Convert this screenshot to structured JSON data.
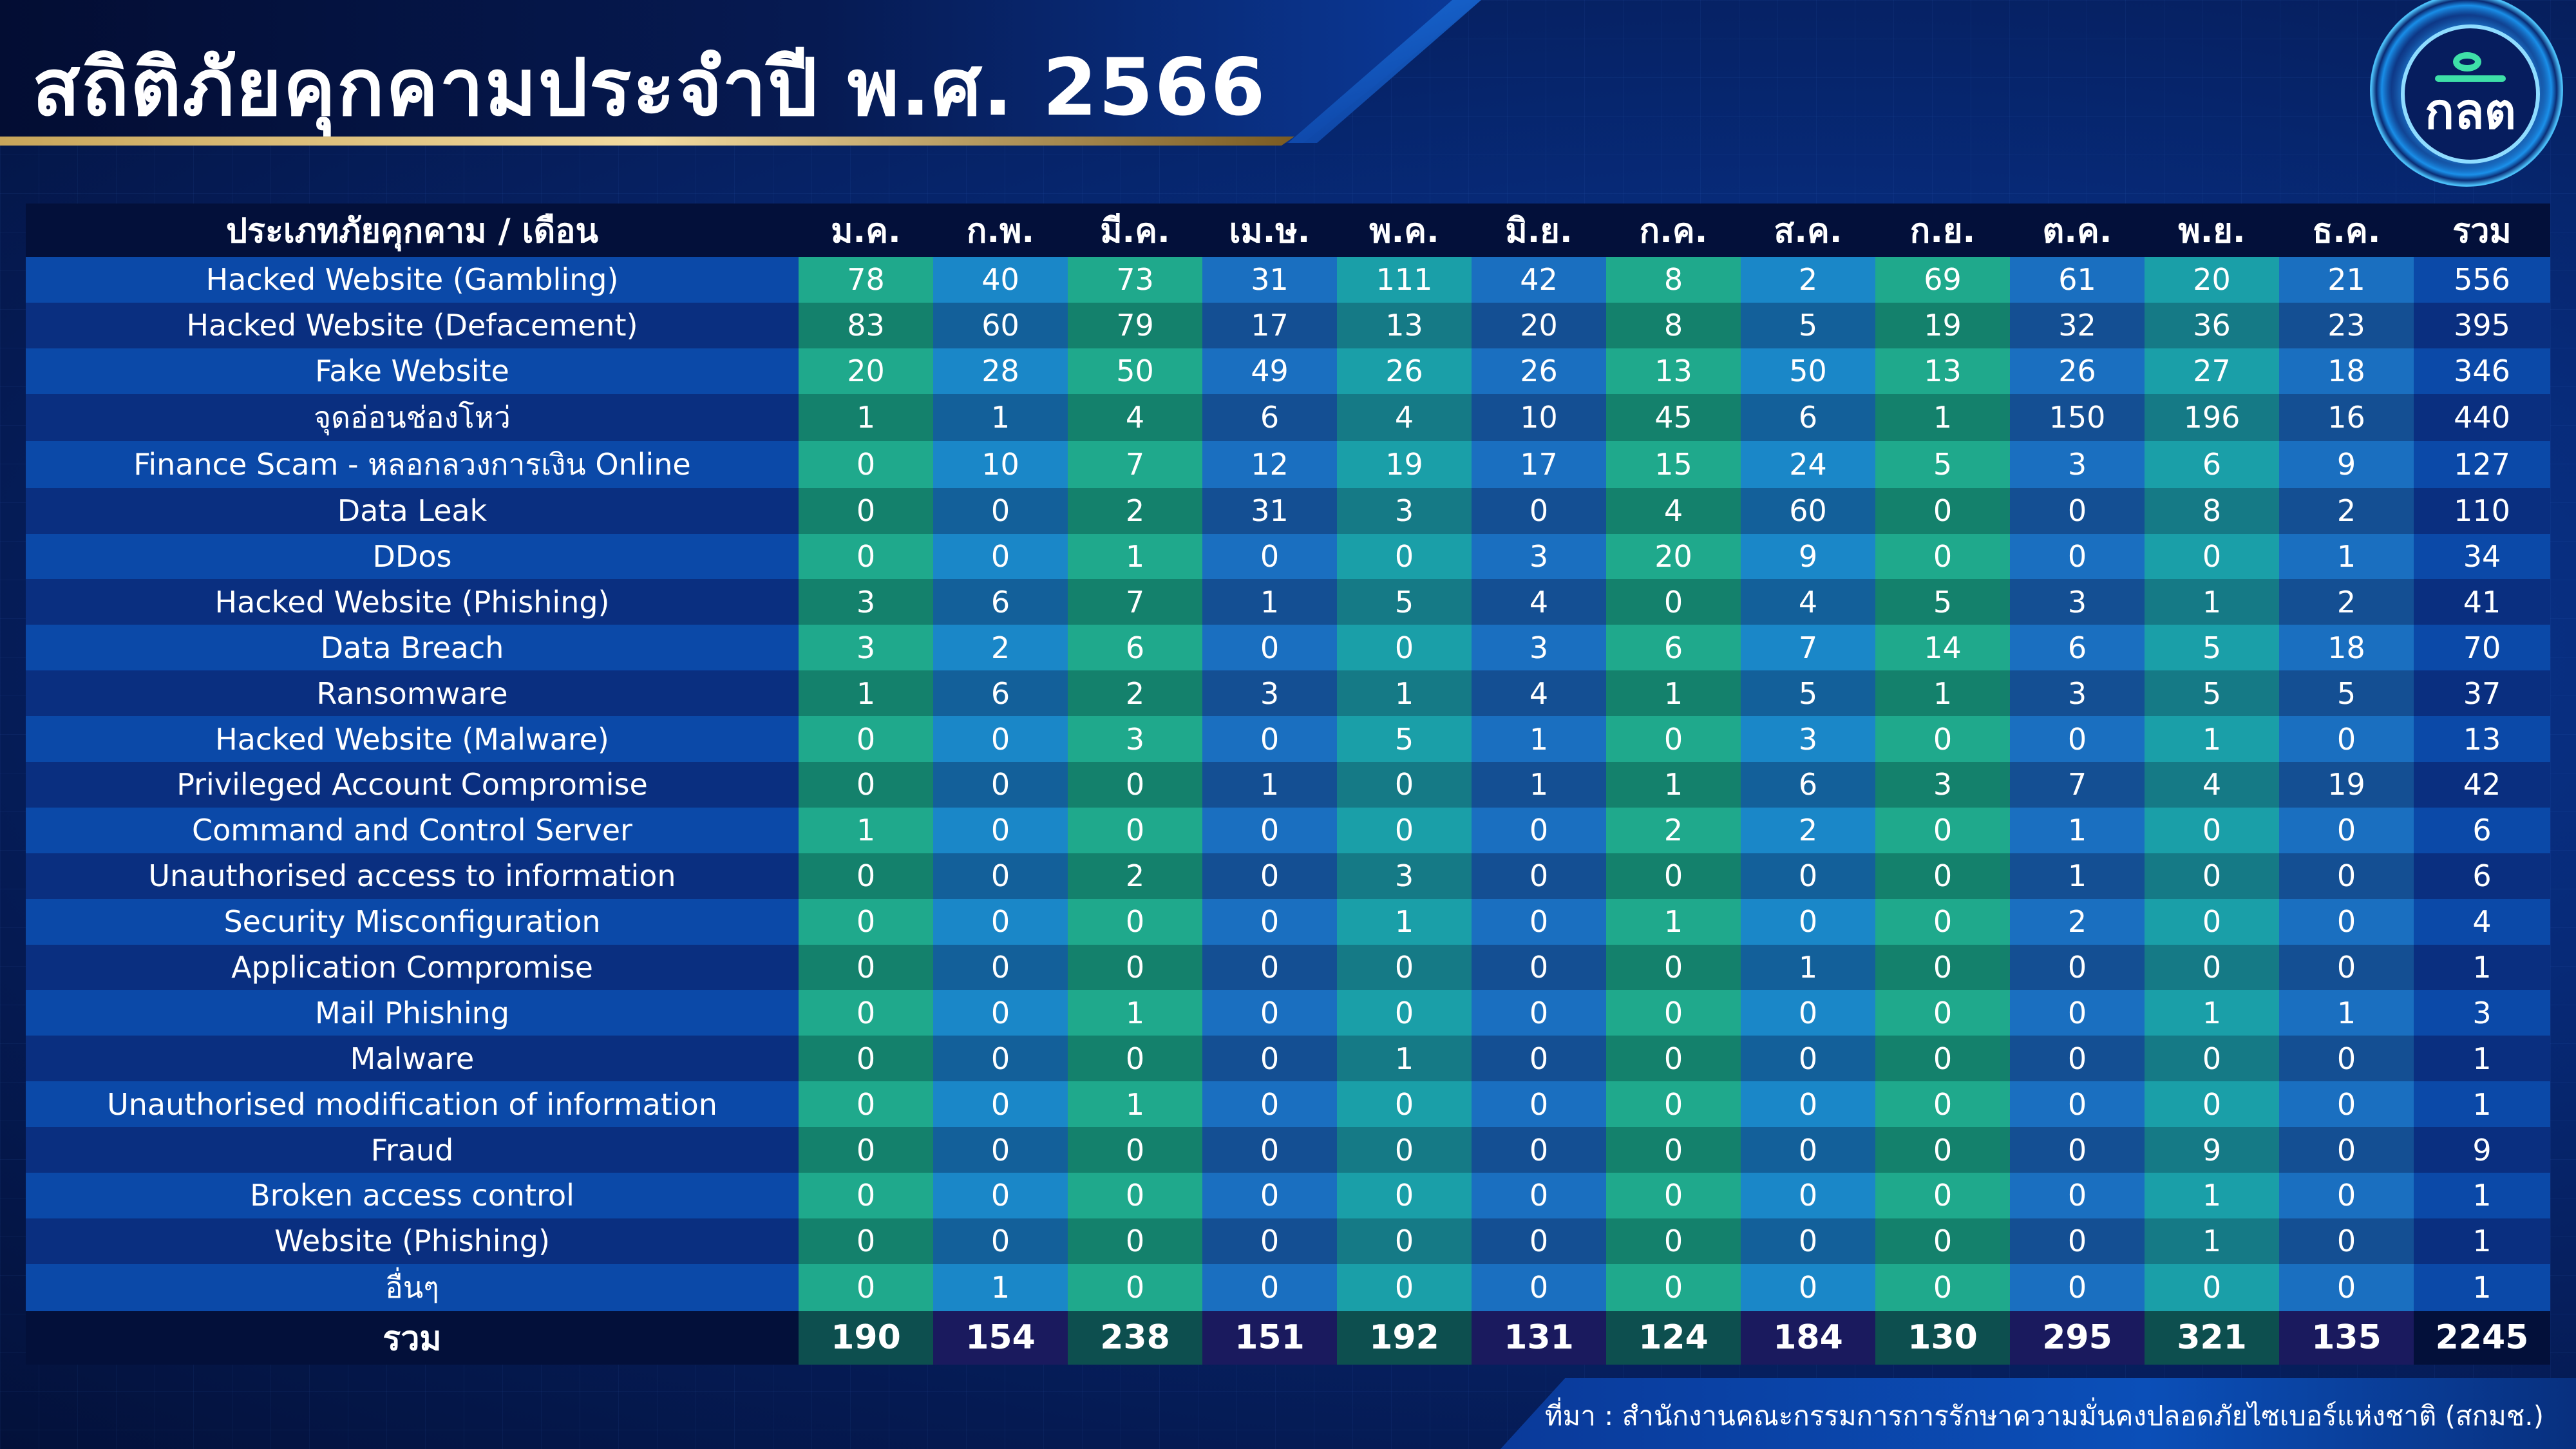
{
  "title": "สถิติภัยคุกคามประจำปี พ.ศ. 2566",
  "logo": {
    "text": "กลต",
    "icon": "sec-logo-icon"
  },
  "table": {
    "header_label": "ประเภทภัยคุกคาม / เดือน",
    "months": [
      "ม.ค.",
      "ก.พ.",
      "มี.ค.",
      "เม.ษ.",
      "พ.ค.",
      "มิ.ย.",
      "ก.ค.",
      "ส.ค.",
      "ก.ย.",
      "ต.ค.",
      "พ.ย.",
      "ธ.ค."
    ],
    "total_header": "รวม",
    "rows": [
      {
        "label": "Hacked Website (Gambling)",
        "values": [
          "78",
          "40",
          "73",
          "31",
          "111",
          "42",
          "8",
          "2",
          "69",
          "61",
          "20",
          "21"
        ],
        "total": "556"
      },
      {
        "label": "Hacked Website (Defacement)",
        "values": [
          "83",
          "60",
          "79",
          "17",
          "13",
          "20",
          "8",
          "5",
          "19",
          "32",
          "36",
          "23"
        ],
        "total": "395"
      },
      {
        "label": "Fake Website",
        "values": [
          "20",
          "28",
          "50",
          "49",
          "26",
          "26",
          "13",
          "50",
          "13",
          "26",
          "27",
          "18"
        ],
        "total": "346"
      },
      {
        "label": "จุดอ่อนช่องโหว่",
        "values": [
          "1",
          "1",
          "4",
          "6",
          "4",
          "10",
          "45",
          "6",
          "1",
          "150",
          "196",
          "16"
        ],
        "total": "440"
      },
      {
        "label": "Finance Scam - หลอกลวงการเงิน Online",
        "values": [
          "0",
          "10",
          "7",
          "12",
          "19",
          "17",
          "15",
          "24",
          "5",
          "3",
          "6",
          "9"
        ],
        "total": "127"
      },
      {
        "label": "Data Leak",
        "values": [
          "0",
          "0",
          "2",
          "31",
          "3",
          "0",
          "4",
          "60",
          "0",
          "0",
          "8",
          "2"
        ],
        "total": "110"
      },
      {
        "label": "DDos",
        "values": [
          "0",
          "0",
          "1",
          "0",
          "0",
          "3",
          "20",
          "9",
          "0",
          "0",
          "0",
          "1"
        ],
        "total": "34"
      },
      {
        "label": "Hacked Website (Phishing)",
        "values": [
          "3",
          "6",
          "7",
          "1",
          "5",
          "4",
          "0",
          "4",
          "5",
          "3",
          "1",
          "2"
        ],
        "total": "41"
      },
      {
        "label": "Data Breach",
        "values": [
          "3",
          "2",
          "6",
          "0",
          "0",
          "3",
          "6",
          "7",
          "14",
          "6",
          "5",
          "18"
        ],
        "total": "70"
      },
      {
        "label": "Ransomware",
        "values": [
          "1",
          "6",
          "2",
          "3",
          "1",
          "4",
          "1",
          "5",
          "1",
          "3",
          "5",
          "5"
        ],
        "total": "37"
      },
      {
        "label": "Hacked Website (Malware)",
        "values": [
          "0",
          "0",
          "3",
          "0",
          "5",
          "1",
          "0",
          "3",
          "0",
          "0",
          "1",
          "0"
        ],
        "total": "13"
      },
      {
        "label": "Privileged Account Compromise",
        "values": [
          "0",
          "0",
          "0",
          "1",
          "0",
          "1",
          "1",
          "6",
          "3",
          "7",
          "4",
          "19"
        ],
        "total": "42"
      },
      {
        "label": "Command and Control Server",
        "values": [
          "1",
          "0",
          "0",
          "0",
          "0",
          "0",
          "2",
          "2",
          "0",
          "1",
          "0",
          "0"
        ],
        "total": "6"
      },
      {
        "label": "Unauthorised access to information",
        "values": [
          "0",
          "0",
          "2",
          "0",
          "3",
          "0",
          "0",
          "0",
          "0",
          "1",
          "0",
          "0"
        ],
        "total": "6"
      },
      {
        "label": "Security Misconfiguration",
        "values": [
          "0",
          "0",
          "0",
          "0",
          "1",
          "0",
          "1",
          "0",
          "0",
          "2",
          "0",
          "0"
        ],
        "total": "4"
      },
      {
        "label": "Application Compromise",
        "values": [
          "0",
          "0",
          "0",
          "0",
          "0",
          "0",
          "0",
          "1",
          "0",
          "0",
          "0",
          "0"
        ],
        "total": "1"
      },
      {
        "label": "Mail Phishing",
        "values": [
          "0",
          "0",
          "1",
          "0",
          "0",
          "0",
          "0",
          "0",
          "0",
          "0",
          "1",
          "1"
        ],
        "total": "3"
      },
      {
        "label": "Malware",
        "values": [
          "0",
          "0",
          "0",
          "0",
          "1",
          "0",
          "0",
          "0",
          "0",
          "0",
          "0",
          "0"
        ],
        "total": "1"
      },
      {
        "label": "Unauthorised modification of information",
        "values": [
          "0",
          "0",
          "1",
          "0",
          "0",
          "0",
          "0",
          "0",
          "0",
          "0",
          "0",
          "0"
        ],
        "total": "1"
      },
      {
        "label": "Fraud",
        "values": [
          "0",
          "0",
          "0",
          "0",
          "0",
          "0",
          "0",
          "0",
          "0",
          "0",
          "9",
          "0"
        ],
        "total": "9"
      },
      {
        "label": "Broken access control",
        "values": [
          "0",
          "0",
          "0",
          "0",
          "0",
          "0",
          "0",
          "0",
          "0",
          "0",
          "1",
          "0"
        ],
        "total": "1"
      },
      {
        "label": "Website (Phishing)",
        "values": [
          "0",
          "0",
          "0",
          "0",
          "0",
          "0",
          "0",
          "0",
          "0",
          "0",
          "1",
          "0"
        ],
        "total": "1"
      },
      {
        "label": "อื่นๆ",
        "values": [
          "0",
          "1",
          "0",
          "0",
          "0",
          "0",
          "0",
          "0",
          "0",
          "0",
          "0",
          "0"
        ],
        "total": "1"
      }
    ],
    "totals_row": {
      "label": "รวม",
      "values": [
        "190",
        "154",
        "238",
        "151",
        "192",
        "131",
        "124",
        "184",
        "130",
        "295",
        "321",
        "135"
      ],
      "total": "2245"
    }
  },
  "source": "ที่มา : สำนักงานคณะกรรมการการรักษาความมั่นคงปลอดภัยไซเบอร์แห่งชาติ (สกมช.)"
}
